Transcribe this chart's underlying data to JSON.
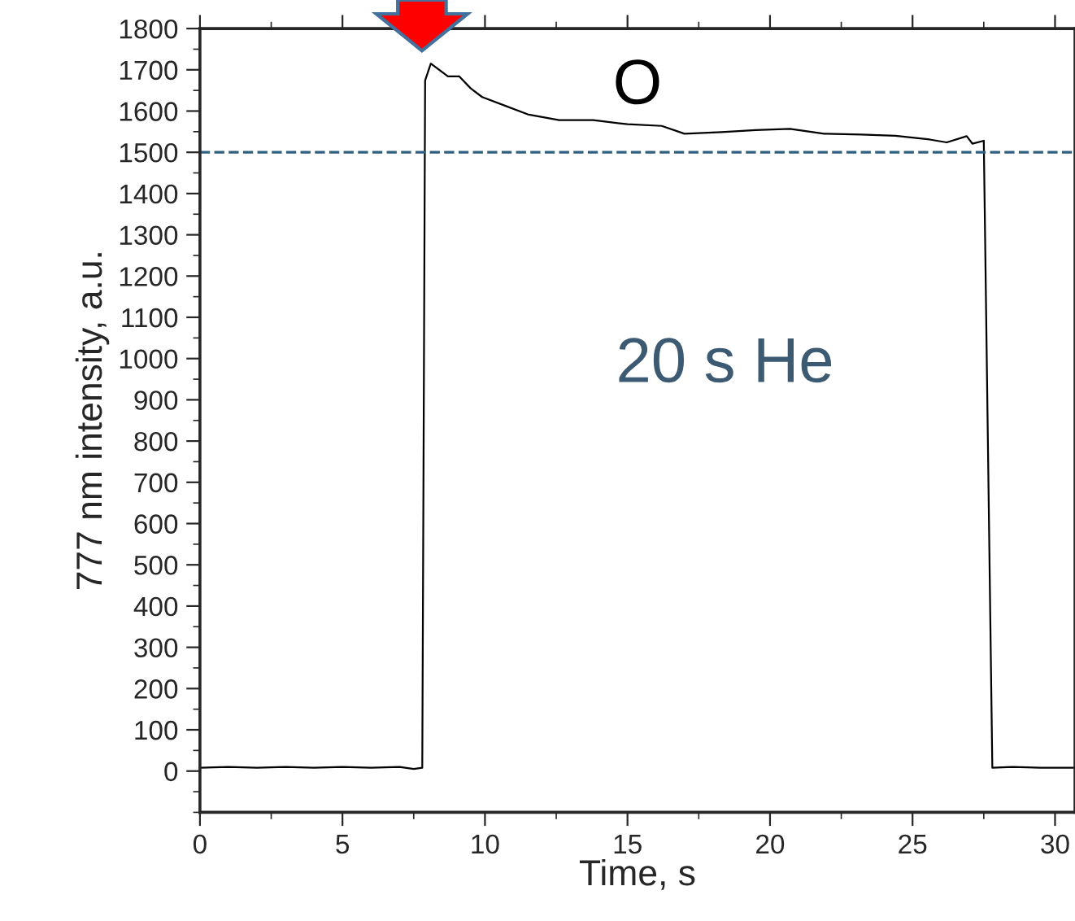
{
  "chart_data": {
    "type": "line",
    "xlabel": "Time, s",
    "ylabel": "777 nm intensity, a.u.",
    "annotations": [
      "O",
      "20 s He"
    ],
    "series": [
      {
        "color": "#000000",
        "x": [
          0,
          1,
          2,
          3,
          4,
          5,
          6,
          7,
          7.5,
          7.8,
          7.9,
          8.1,
          8.7,
          9.1,
          9.5,
          9.9,
          10.7,
          11.5,
          12.6,
          13.8,
          15.0,
          16.2,
          17.0,
          18.3,
          19.5,
          20.7,
          21.9,
          23.2,
          24.4,
          25.6,
          26.2,
          26.9,
          27.1,
          27.5,
          27.8,
          28.5,
          29.5,
          30.7
        ],
        "values": [
          8,
          10,
          8,
          10,
          8,
          10,
          8,
          10,
          5,
          8,
          1674,
          1715,
          1684,
          1684,
          1655,
          1634,
          1613,
          1592,
          1578,
          1578,
          1568,
          1564,
          1545,
          1549,
          1554,
          1557,
          1545,
          1543,
          1540,
          1531,
          1524,
          1539,
          1521,
          1528,
          8,
          10,
          8,
          8
        ]
      }
    ],
    "xlim": [
      0,
      30.7
    ],
    "xticks": [
      0,
      5,
      10,
      15,
      20,
      25,
      30
    ],
    "ylim": [
      -100,
      1800
    ],
    "yticks": [
      0,
      100,
      200,
      300,
      400,
      500,
      600,
      700,
      800,
      900,
      1000,
      1100,
      1200,
      1300,
      1400,
      1500,
      1600,
      1700,
      1800
    ],
    "ref_lines": [
      {
        "axis": "y",
        "value": 1500,
        "color": "#2f5f7f",
        "line_style": "dashed"
      }
    ],
    "grid": false,
    "legend": false,
    "marker": "none",
    "line_style": "solid"
  }
}
